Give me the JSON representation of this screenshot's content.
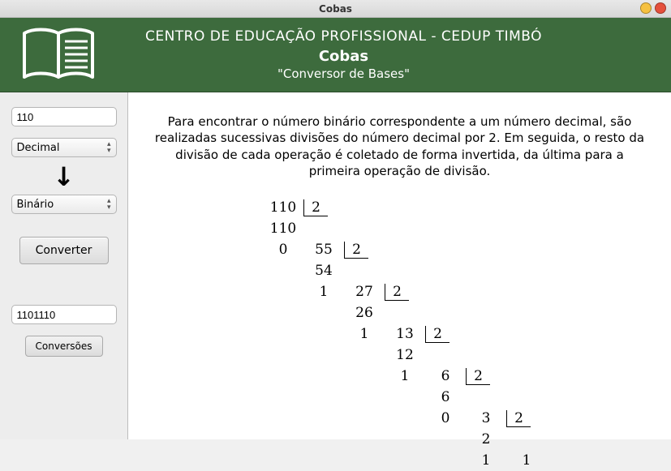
{
  "window": {
    "title": "Cobas"
  },
  "header": {
    "line1": "CENTRO DE EDUCAÇÃO PROFISSIONAL - CEDUP TIMBÓ",
    "line2": "Cobas",
    "line3": "\"Conversor de Bases\""
  },
  "sidebar": {
    "input_value": "110",
    "from_base": "Decimal",
    "to_base": "Binário",
    "convert_label": "Converter",
    "result_value": "1101110",
    "conversions_label": "Conversões"
  },
  "explanation": "Para encontrar o número binário correspondente a um número decimal, são realizadas sucessivas divisões do número decimal por 2. Em seguida, o resto da divisão de cada operação é coletado de forma invertida, da última para a primeira operação de divisão.",
  "division": {
    "divisor": "2",
    "steps": [
      {
        "dividend": "110",
        "under": "110",
        "rem": "0"
      },
      {
        "dividend": "55",
        "under": "54",
        "rem": "1"
      },
      {
        "dividend": "27",
        "under": "26",
        "rem": "1"
      },
      {
        "dividend": "13",
        "under": "12",
        "rem": "1"
      },
      {
        "dividend": "6",
        "under": "6",
        "rem": "0"
      },
      {
        "dividend": "3",
        "under": "2",
        "rem": "1"
      },
      {
        "dividend": "1"
      }
    ]
  },
  "colors": {
    "header_bg": "#3d6b3d",
    "sidebar_bg": "#ededed",
    "main_bg": "#ffffff"
  }
}
